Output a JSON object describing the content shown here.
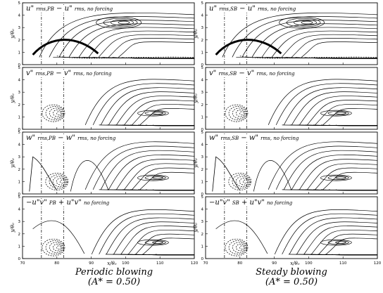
{
  "figure": {
    "y_axis_label": "y/θ₀",
    "x_axis_label": "x/θ₀",
    "y_ticks": [
      "0",
      "1",
      "2",
      "3",
      "4",
      "5"
    ],
    "x_ticks": [
      "70",
      "80",
      "90",
      "100",
      "110",
      "120"
    ],
    "columns": [
      {
        "caption_line1": "Periodic blowing",
        "caption_line2": "(A* = 0.50)"
      },
      {
        "caption_line1": "Steady blowing",
        "caption_line2": "(A* = 0.50)"
      }
    ],
    "panels": [
      {
        "main": "u\" ",
        "sub": "rms,PB",
        "main2": " − u\" ",
        "sub2": "rms, no forcing"
      },
      {
        "main": "u\" ",
        "sub": "rms,SB",
        "main2": " − u\" ",
        "sub2": "rms, no forcing"
      },
      {
        "main": "v\" ",
        "sub": "rms,PB",
        "main2": " − v\" ",
        "sub2": "rms, no forcing"
      },
      {
        "main": "v\" ",
        "sub": "rms,SB",
        "main2": " − v\" ",
        "sub2": "rms, no forcing"
      },
      {
        "main": "w\" ",
        "sub": "rms,PB",
        "main2": " − w\" ",
        "sub2": "rms, no forcing"
      },
      {
        "main": "w\" ",
        "sub": "rms,SB",
        "main2": " − w\" ",
        "sub2": "rms, no forcing"
      },
      {
        "main": "−u\"v\" ",
        "sub": "PB",
        "main2": " + u\"v\" ",
        "sub2": "no forcing"
      },
      {
        "main": "−u\"v\" ",
        "sub": "SB",
        "main2": " + u\"v\" ",
        "sub2": "no forcing"
      }
    ]
  }
}
